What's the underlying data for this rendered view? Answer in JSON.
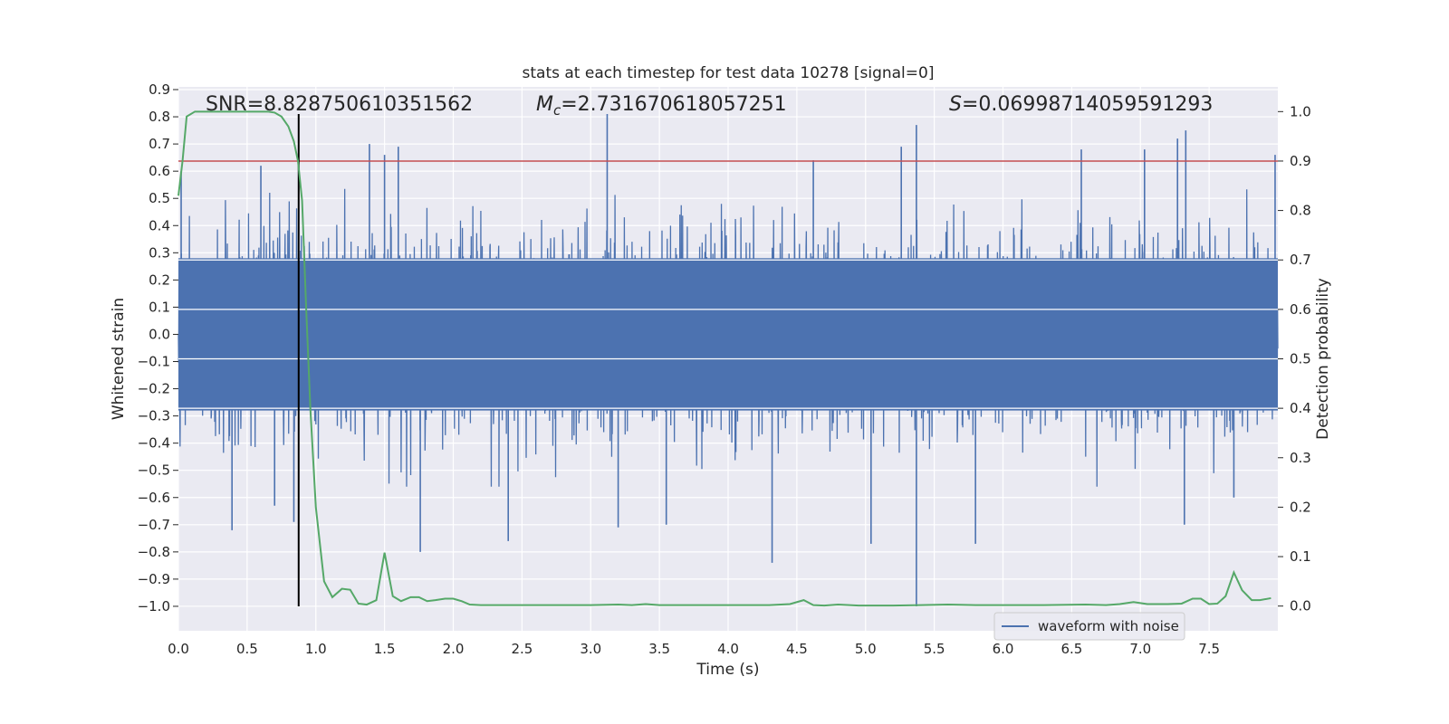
{
  "chart_data": {
    "type": "line",
    "title": "stats at each timestep for test data 10278 [signal=0]",
    "xlabel": "Time (s)",
    "ylabel": "Whitened strain",
    "y2label": "Detection probability",
    "xlim": [
      0,
      8
    ],
    "ylim": [
      -1.09,
      0.91
    ],
    "y2lim": [
      -0.05,
      1.05
    ],
    "x_ticks": [
      0.0,
      0.5,
      1.0,
      1.5,
      2.0,
      2.5,
      3.0,
      3.5,
      4.0,
      4.5,
      5.0,
      5.5,
      6.0,
      6.5,
      7.0,
      7.5
    ],
    "x_tick_labels": [
      "0.0",
      "0.5",
      "1.0",
      "1.5",
      "2.0",
      "2.5",
      "3.0",
      "3.5",
      "4.0",
      "4.5",
      "5.0",
      "5.5",
      "6.0",
      "6.5",
      "7.0",
      "7.5"
    ],
    "y_ticks": [
      0.9,
      0.8,
      0.7,
      0.6,
      0.5,
      0.4,
      0.3,
      0.2,
      0.1,
      0.0,
      -0.1,
      -0.2,
      -0.3,
      -0.4,
      -0.5,
      -0.6,
      -0.7,
      -0.8,
      -0.9,
      -1.0
    ],
    "y_tick_labels": [
      "0.9",
      "0.8",
      "0.7",
      "0.6",
      "0.5",
      "0.4",
      "0.3",
      "0.2",
      "0.1",
      "0.0",
      "−0.1",
      "−0.2",
      "−0.3",
      "−0.4",
      "−0.5",
      "−0.6",
      "−0.7",
      "−0.8",
      "−0.9",
      "−1.0"
    ],
    "y2_ticks": [
      1.0,
      0.9,
      0.8,
      0.7,
      0.6,
      0.5,
      0.4,
      0.3,
      0.2,
      0.1,
      0.0
    ],
    "y2_tick_labels": [
      "1.0",
      "0.9",
      "0.8",
      "0.7",
      "0.6",
      "0.5",
      "0.4",
      "0.3",
      "0.2",
      "0.1",
      "0.0"
    ],
    "grid": true,
    "legend_position": "bottom-right",
    "annotations": {
      "snr": "SNR=8.828750610351562",
      "mc_symbol": "M",
      "mc_subscript": "c",
      "mc_value": "=2.731670618057251",
      "s_symbol": "S",
      "s_value": "=0.06998714059591293"
    },
    "threshold_line": {
      "axis": "secondary",
      "y": 0.9,
      "color": "#c44e52"
    },
    "vertical_marker": {
      "x": 0.875,
      "y_from": -1.0,
      "y_to": 0.81,
      "color": "#000000"
    },
    "series": [
      {
        "name": "waveform with noise",
        "axis": "primary",
        "color": "#4c72b0",
        "sample_rate_hz": 2048,
        "envelope_typical": [
          -0.28,
          0.28
        ],
        "peaks": [
          {
            "x": 0.02,
            "y": 0.6
          },
          {
            "x": 0.39,
            "y": -0.72
          },
          {
            "x": 0.6,
            "y": 0.62
          },
          {
            "x": 0.7,
            "y": -0.63
          },
          {
            "x": 0.84,
            "y": -0.69
          },
          {
            "x": 1.39,
            "y": 0.7
          },
          {
            "x": 1.5,
            "y": 0.66
          },
          {
            "x": 1.6,
            "y": 0.69
          },
          {
            "x": 1.76,
            "y": -0.8
          },
          {
            "x": 2.4,
            "y": -0.76
          },
          {
            "x": 3.12,
            "y": 0.81
          },
          {
            "x": 3.2,
            "y": -0.71
          },
          {
            "x": 3.55,
            "y": -0.7
          },
          {
            "x": 4.32,
            "y": -0.84
          },
          {
            "x": 4.62,
            "y": 0.64
          },
          {
            "x": 5.04,
            "y": -0.77
          },
          {
            "x": 5.26,
            "y": 0.69
          },
          {
            "x": 5.37,
            "y": 0.77
          },
          {
            "x": 5.37,
            "y": -1.0
          },
          {
            "x": 5.8,
            "y": -0.77
          },
          {
            "x": 6.57,
            "y": 0.68
          },
          {
            "x": 7.03,
            "y": 0.68
          },
          {
            "x": 7.27,
            "y": 0.72
          },
          {
            "x": 7.33,
            "y": 0.75
          },
          {
            "x": 7.32,
            "y": -0.7
          },
          {
            "x": 7.68,
            "y": -0.6
          },
          {
            "x": 7.98,
            "y": 0.66
          }
        ]
      },
      {
        "name": "",
        "axis": "secondary",
        "color": "#55a868",
        "x": [
          0.0,
          0.03,
          0.06,
          0.12,
          0.2,
          0.3,
          0.4,
          0.5,
          0.6,
          0.65,
          0.7,
          0.75,
          0.8,
          0.84,
          0.87,
          0.9,
          0.93,
          0.96,
          1.0,
          1.06,
          1.12,
          1.19,
          1.25,
          1.31,
          1.37,
          1.44,
          1.5,
          1.56,
          1.62,
          1.69,
          1.75,
          1.81,
          1.87,
          1.94,
          2.0,
          2.06,
          2.12,
          2.2,
          2.5,
          2.8,
          3.0,
          3.2,
          3.3,
          3.4,
          3.5,
          3.7,
          4.0,
          4.3,
          4.45,
          4.55,
          4.62,
          4.7,
          4.8,
          4.95,
          5.2,
          5.4,
          5.6,
          5.8,
          6.0,
          6.3,
          6.6,
          6.75,
          6.85,
          6.95,
          7.05,
          7.2,
          7.3,
          7.38,
          7.44,
          7.5,
          7.56,
          7.62,
          7.68,
          7.74,
          7.81,
          7.87,
          7.95
        ],
        "y": [
          0.83,
          0.9,
          0.99,
          1.0,
          1.0,
          1.0,
          1.0,
          1.0,
          1.0,
          1.0,
          0.998,
          0.99,
          0.97,
          0.94,
          0.9,
          0.82,
          0.6,
          0.4,
          0.2,
          0.05,
          0.018,
          0.035,
          0.033,
          0.005,
          0.003,
          0.012,
          0.108,
          0.02,
          0.01,
          0.018,
          0.018,
          0.01,
          0.012,
          0.015,
          0.015,
          0.01,
          0.003,
          0.002,
          0.002,
          0.002,
          0.002,
          0.003,
          0.002,
          0.004,
          0.002,
          0.002,
          0.002,
          0.002,
          0.004,
          0.012,
          0.002,
          0.001,
          0.003,
          0.001,
          0.001,
          0.002,
          0.003,
          0.002,
          0.002,
          0.002,
          0.003,
          0.002,
          0.004,
          0.008,
          0.004,
          0.004,
          0.005,
          0.015,
          0.015,
          0.004,
          0.005,
          0.02,
          0.068,
          0.032,
          0.012,
          0.012,
          0.016
        ]
      }
    ]
  }
}
